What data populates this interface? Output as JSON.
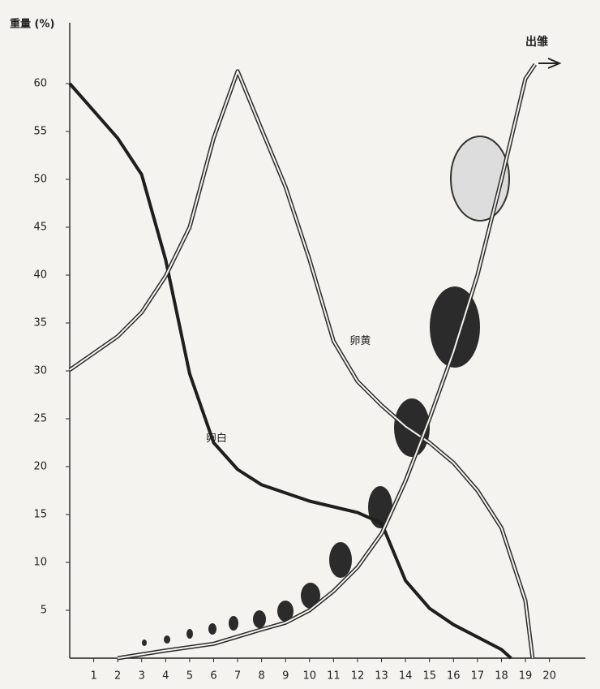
{
  "chart_data": {
    "type": "line",
    "y_label": "重量 (%)",
    "xlim": [
      0,
      21.5
    ],
    "ylim": [
      0,
      66
    ],
    "xticks": [
      1,
      2,
      3,
      4,
      5,
      6,
      7,
      8,
      9,
      10,
      11,
      12,
      13,
      14,
      15,
      16,
      17,
      18,
      19,
      20
    ],
    "yticks": [
      5,
      10,
      15,
      20,
      25,
      30,
      35,
      40,
      45,
      50,
      55,
      60
    ],
    "grid": false,
    "end_label": "出雏",
    "series": [
      {
        "name": "卵白",
        "color": "#1e1e1e",
        "style": "solid",
        "x": [
          0,
          2,
          3,
          4,
          5,
          6,
          7,
          8,
          10,
          12,
          13,
          14,
          15,
          16,
          17,
          18,
          18.4
        ],
        "values": [
          60,
          54.3,
          50.5,
          41.6,
          29.7,
          22.5,
          19.7,
          18.1,
          16.4,
          15.2,
          14.1,
          8.1,
          5.2,
          3.5,
          2.2,
          0.9,
          0
        ]
      },
      {
        "name": "卵黄",
        "color": "#2a2a2a",
        "style": "double",
        "x": [
          0,
          2,
          3,
          4,
          5,
          6,
          7,
          8,
          9,
          10,
          11,
          12,
          13,
          14,
          15,
          16,
          17,
          18,
          19,
          19.3
        ],
        "values": [
          30.1,
          33.6,
          36.1,
          39.9,
          45,
          54.3,
          61.3,
          55.2,
          49.2,
          41.6,
          33.1,
          28.9,
          26.4,
          24.2,
          22.5,
          20.4,
          17.5,
          13.6,
          6,
          0
        ]
      },
      {
        "color": "#2a2a2a",
        "style": "double",
        "x": [
          2,
          4,
          6,
          8,
          9,
          10,
          11,
          12,
          13,
          14,
          15,
          16,
          17,
          18,
          19,
          19.4
        ],
        "values": [
          0,
          0.8,
          1.5,
          3,
          3.7,
          5,
          7,
          9.5,
          13,
          18.5,
          25,
          32,
          40,
          50,
          60.5,
          62
        ]
      }
    ]
  }
}
